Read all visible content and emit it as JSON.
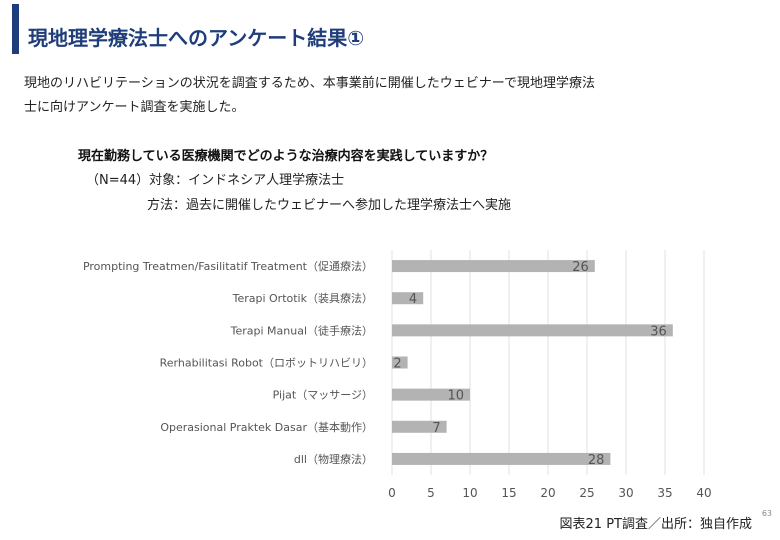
{
  "slide": {
    "title": "現地理学療法士へのアンケート結果①",
    "intro_line1": "現地のリハビリテーションの状況を調査するため、本事業前に開催したウェビナーで現地理学療法",
    "intro_line2": "士に向けアンケート調査を実施した。",
    "question": "現在勤務している医療機関でどのような治療内容を実践していますか？",
    "meta_line1": "（N=44）対象：インドネシア人理学療法士",
    "meta_line2": "方法：過去に開催したウェビナーへ参加した理学療法士へ実施",
    "caption": "図表21 PT調査／出所：独自作成",
    "page_number": "63"
  },
  "chart_data": {
    "type": "bar",
    "orientation": "horizontal",
    "categories": [
      "Prompting Treatmen/Fasilitatif Treatment（促通療法）",
      "Terapi Ortotik（装具療法）",
      "Terapi Manual（徒手療法）",
      "Rerhabilitasi Robot（ロボットリハビリ）",
      "Pijat（マッサージ）",
      "Operasional Praktek Dasar（基本動作）",
      "dll（物理療法）"
    ],
    "values": [
      26,
      4,
      36,
      2,
      10,
      7,
      28
    ],
    "xlim": [
      0,
      40
    ],
    "xticks": [
      0,
      5,
      10,
      15,
      20,
      25,
      30,
      35,
      40
    ],
    "grid": true,
    "bar_color": "#b3b3b3",
    "grid_color": "#e0e0e0",
    "label_color": "#555555"
  }
}
